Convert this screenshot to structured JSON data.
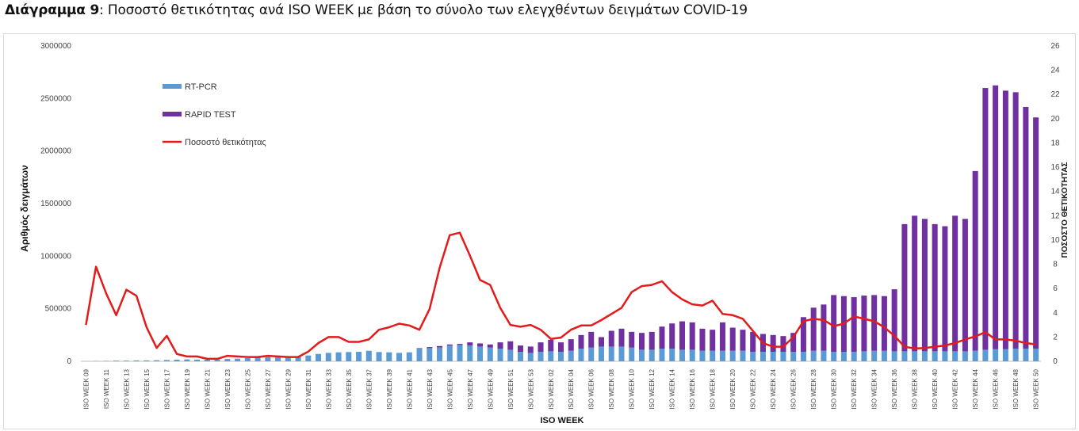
{
  "title": {
    "prefix": "Διάγραμμα 9",
    "text": ": Ποσοστό θετικότητας ανά ISO WEEK με βάση το σύνολο των ελεγχθέντων δειγμάτων COVID-19"
  },
  "colors": {
    "rtpcr": "#5B9BD5",
    "rapid": "#7030A0",
    "line": "#E31B1B"
  },
  "chart_data": {
    "type": "bar",
    "xlabel": "ISO WEEK",
    "ylabel": "Αριθμός δειγμάτων",
    "y2label": "ΠΟΣΟΣΤΟ ΘΕΤΙΚΟΤΗΤΑΣ",
    "ylim": [
      0,
      3000000
    ],
    "y2lim": [
      0,
      26
    ],
    "yticks": [
      "0",
      "500000",
      "1000000",
      "1500000",
      "2000000",
      "2500000",
      "3000000"
    ],
    "y2ticks": [
      "0",
      "2",
      "4",
      "6",
      "8",
      "10",
      "12",
      "14",
      "16",
      "18",
      "20",
      "22",
      "24",
      "26"
    ],
    "legend_position": "top-left",
    "categories": [
      "ISO WEEK 09",
      "ISO WEEK 10",
      "ISO WEEK 11",
      "ISO WEEK 12",
      "ISO WEEK 13",
      "ISO WEEK 14",
      "ISO WEEK 15",
      "ISO WEEK 16",
      "ISO WEEK 17",
      "ISO WEEK 18",
      "ISO WEEK 19",
      "ISO WEEK 20",
      "ISO WEEK 21",
      "ISO WEEK 22",
      "ISO WEEK 23",
      "ISO WEEK 24",
      "ISO WEEK 25",
      "ISO WEEK 26",
      "ISO WEEK 27",
      "ISO WEEK 28",
      "ISO WEEK 29",
      "ISO WEEK 30",
      "ISO WEEK 31",
      "ISO WEEK 32",
      "ISO WEEK 33",
      "ISO WEEK 34",
      "ISO WEEK 35",
      "ISO WEEK 36",
      "ISO WEEK 37",
      "ISO WEEK 38",
      "ISO WEEK 39",
      "ISO WEEK 40",
      "ISO WEEK 41",
      "ISO WEEK 42",
      "ISO WEEK 43",
      "ISO WEEK 44",
      "ISO WEEK 45",
      "ISO WEEK 46",
      "ISO WEEK 47",
      "ISO WEEK 48",
      "ISO WEEK 49",
      "ISO WEEK 50",
      "ISO WEEK 51",
      "ISO WEEK 52",
      "ISO WEEK 53",
      "ISO WEEK 01",
      "ISO WEEK 02",
      "ISO WEEK 03",
      "ISO WEEK 04",
      "ISO WEEK 05",
      "ISO WEEK 06",
      "ISO WEEK 07",
      "ISO WEEK 08",
      "ISO WEEK 09",
      "ISO WEEK 10",
      "ISO WEEK 11",
      "ISO WEEK 12",
      "ISO WEEK 13",
      "ISO WEEK 14",
      "ISO WEEK 15",
      "ISO WEEK 16",
      "ISO WEEK 17",
      "ISO WEEK 18",
      "ISO WEEK 19",
      "ISO WEEK 20",
      "ISO WEEK 21",
      "ISO WEEK 22",
      "ISO WEEK 23",
      "ISO WEEK 24",
      "ISO WEEK 25",
      "ISO WEEK 26",
      "ISO WEEK 27",
      "ISO WEEK 28",
      "ISO WEEK 29",
      "ISO WEEK 30",
      "ISO WEEK 31",
      "ISO WEEK 32",
      "ISO WEEK 33",
      "ISO WEEK 34",
      "ISO WEEK 35",
      "ISO WEEK 36",
      "ISO WEEK 37",
      "ISO WEEK 38",
      "ISO WEEK 39",
      "ISO WEEK 40",
      "ISO WEEK 41",
      "ISO WEEK 42",
      "ISO WEEK 43",
      "ISO WEEK 44",
      "ISO WEEK 45",
      "ISO WEEK 46",
      "ISO WEEK 47",
      "ISO WEEK 48",
      "ISO WEEK 49",
      "ISO WEEK 50"
    ],
    "series": [
      {
        "name": "RT-PCR",
        "type": "bar",
        "axis": "left",
        "values": [
          1000,
          2000,
          4000,
          6000,
          6000,
          8000,
          8000,
          10000,
          12000,
          15000,
          18000,
          16000,
          15000,
          16000,
          22000,
          25000,
          30000,
          35000,
          40000,
          42000,
          45000,
          42000,
          55000,
          70000,
          80000,
          85000,
          88000,
          90000,
          100000,
          88000,
          85000,
          80000,
          85000,
          120000,
          125000,
          130000,
          150000,
          155000,
          150000,
          140000,
          130000,
          120000,
          110000,
          90000,
          80000,
          90000,
          95000,
          90000,
          100000,
          120000,
          130000,
          140000,
          140000,
          140000,
          130000,
          110000,
          110000,
          120000,
          120000,
          110000,
          110000,
          100000,
          100000,
          100000,
          100000,
          100000,
          90000,
          90000,
          90000,
          90000,
          90000,
          90000,
          100000,
          100000,
          90000,
          90000,
          90000,
          95000,
          100000,
          100000,
          95000,
          95000,
          95000,
          95000,
          95000,
          95000,
          95000,
          95000,
          100000,
          110000,
          115000,
          115000,
          120000,
          120000,
          120000
        ]
      },
      {
        "name": "RAPID TEST",
        "type": "bar",
        "axis": "left",
        "values": [
          0,
          0,
          0,
          0,
          0,
          0,
          0,
          0,
          0,
          0,
          0,
          0,
          0,
          0,
          0,
          0,
          0,
          0,
          0,
          0,
          0,
          0,
          0,
          0,
          0,
          0,
          0,
          0,
          0,
          0,
          0,
          0,
          0,
          5000,
          10000,
          15000,
          10000,
          10000,
          30000,
          30000,
          30000,
          60000,
          80000,
          60000,
          60000,
          90000,
          110000,
          90000,
          110000,
          130000,
          150000,
          90000,
          150000,
          170000,
          150000,
          160000,
          170000,
          210000,
          240000,
          270000,
          260000,
          210000,
          200000,
          270000,
          220000,
          200000,
          190000,
          170000,
          160000,
          150000,
          180000,
          330000,
          410000,
          440000,
          540000,
          530000,
          520000,
          530000,
          530000,
          520000,
          590000,
          1210000,
          1290000,
          1260000,
          1210000,
          1190000,
          1290000,
          1260000,
          1710000,
          2490000,
          2510000,
          2460000,
          2440000,
          2300000,
          2200000
        ]
      },
      {
        "name": "Ποσοστό θετικότητας",
        "type": "line",
        "axis": "right",
        "values": [
          3.0,
          7.8,
          5.6,
          3.8,
          5.9,
          5.4,
          2.8,
          1.1,
          2.1,
          0.6,
          0.4,
          0.4,
          0.2,
          0.2,
          0.45,
          0.4,
          0.35,
          0.35,
          0.45,
          0.4,
          0.35,
          0.35,
          0.8,
          1.5,
          2.0,
          2.0,
          1.6,
          1.6,
          1.8,
          2.6,
          2.8,
          3.1,
          2.95,
          2.6,
          4.3,
          7.7,
          10.4,
          10.6,
          8.7,
          6.7,
          6.3,
          4.4,
          3.0,
          2.85,
          3.0,
          2.6,
          1.85,
          1.95,
          2.6,
          2.95,
          2.95,
          3.4,
          3.9,
          4.4,
          5.7,
          6.2,
          6.3,
          6.6,
          5.7,
          5.1,
          4.7,
          4.6,
          5.0,
          3.9,
          3.8,
          3.5,
          2.5,
          1.5,
          1.2,
          1.2,
          2.0,
          3.3,
          3.5,
          3.4,
          2.9,
          3.1,
          3.7,
          3.5,
          3.3,
          2.8,
          2.1,
          1.2,
          1.05,
          1.1,
          1.2,
          1.3,
          1.5,
          1.8,
          2.05,
          2.4,
          1.8,
          1.8,
          1.7,
          1.5,
          1.4
        ]
      }
    ]
  }
}
